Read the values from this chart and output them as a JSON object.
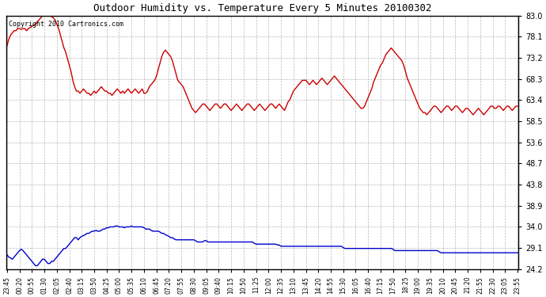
{
  "title": "Outdoor Humidity vs. Temperature Every 5 Minutes 20100302",
  "copyright": "Copyright 2010 Cartronics.com",
  "background_color": "#ffffff",
  "plot_bg_color": "#ffffff",
  "grid_color": "#b0b0b0",
  "y_ticks": [
    24.2,
    29.1,
    34.0,
    38.9,
    43.8,
    48.7,
    53.6,
    58.5,
    63.4,
    68.3,
    73.2,
    78.1,
    83.0
  ],
  "y_min": 24.2,
  "y_max": 83.0,
  "x_labels": [
    "23:45",
    "00:20",
    "00:55",
    "01:30",
    "02:05",
    "02:40",
    "03:15",
    "03:50",
    "04:25",
    "05:00",
    "05:35",
    "06:10",
    "06:45",
    "07:20",
    "07:55",
    "08:30",
    "09:05",
    "09:40",
    "10:15",
    "10:50",
    "11:25",
    "12:00",
    "12:35",
    "13:10",
    "13:45",
    "14:20",
    "14:55",
    "15:30",
    "16:05",
    "16:40",
    "17:15",
    "17:50",
    "18:25",
    "19:00",
    "19:35",
    "20:10",
    "20:45",
    "21:20",
    "21:55",
    "22:30",
    "23:05",
    "23:55"
  ],
  "humidity_color": "#cc0000",
  "temperature_color": "#0000cc",
  "humidity_values": [
    76.0,
    77.5,
    78.5,
    79.0,
    79.5,
    79.5,
    80.0,
    80.0,
    79.8,
    80.0,
    80.0,
    79.5,
    80.0,
    80.2,
    80.5,
    80.8,
    81.0,
    81.5,
    82.0,
    82.5,
    83.0,
    83.0,
    83.0,
    83.0,
    83.0,
    82.8,
    82.5,
    82.0,
    81.0,
    80.0,
    78.5,
    77.0,
    75.5,
    74.5,
    73.0,
    71.5,
    70.0,
    68.0,
    66.5,
    65.5,
    65.5,
    65.0,
    65.5,
    66.0,
    65.5,
    65.0,
    65.0,
    64.5,
    65.0,
    65.5,
    65.0,
    65.5,
    66.0,
    66.5,
    66.0,
    65.5,
    65.5,
    65.0,
    65.0,
    64.5,
    65.0,
    65.5,
    66.0,
    65.5,
    65.0,
    65.5,
    65.0,
    65.5,
    66.0,
    65.5,
    65.0,
    65.5,
    66.0,
    65.5,
    65.0,
    65.5,
    66.0,
    65.0,
    65.0,
    65.5,
    66.5,
    67.0,
    67.5,
    68.0,
    69.0,
    70.5,
    72.0,
    73.5,
    74.5,
    75.0,
    74.5,
    74.0,
    73.5,
    72.5,
    71.0,
    69.5,
    68.0,
    67.5,
    67.0,
    66.5,
    65.5,
    64.5,
    63.5,
    62.5,
    61.5,
    61.0,
    60.5,
    61.0,
    61.5,
    62.0,
    62.5,
    62.5,
    62.0,
    61.5,
    61.0,
    61.5,
    62.0,
    62.5,
    62.5,
    62.0,
    61.5,
    62.0,
    62.5,
    62.5,
    62.0,
    61.5,
    61.0,
    61.5,
    62.0,
    62.5,
    62.0,
    61.5,
    61.0,
    61.5,
    62.0,
    62.5,
    62.5,
    62.0,
    61.5,
    61.0,
    61.5,
    62.0,
    62.5,
    62.0,
    61.5,
    61.0,
    61.5,
    62.0,
    62.5,
    62.5,
    62.0,
    61.5,
    62.0,
    62.5,
    62.0,
    61.5,
    61.0,
    62.0,
    63.0,
    63.5,
    64.5,
    65.5,
    66.0,
    66.5,
    67.0,
    67.5,
    68.0,
    68.0,
    68.0,
    67.5,
    67.0,
    67.5,
    68.0,
    67.5,
    67.0,
    67.5,
    68.0,
    68.5,
    68.0,
    67.5,
    67.0,
    67.5,
    68.0,
    68.5,
    69.0,
    68.5,
    68.0,
    67.5,
    67.0,
    66.5,
    66.0,
    65.5,
    65.0,
    64.5,
    64.0,
    63.5,
    63.0,
    62.5,
    62.0,
    61.5,
    61.5,
    62.0,
    63.0,
    64.0,
    65.0,
    66.0,
    67.5,
    68.5,
    69.5,
    70.5,
    71.5,
    72.0,
    73.0,
    74.0,
    74.5,
    75.0,
    75.5,
    75.0,
    74.5,
    74.0,
    73.5,
    73.0,
    72.5,
    71.5,
    70.0,
    68.5,
    67.5,
    66.5,
    65.5,
    64.5,
    63.5,
    62.5,
    61.5,
    61.0,
    60.5,
    60.5,
    60.0,
    60.5,
    61.0,
    61.5,
    62.0,
    62.0,
    61.5,
    61.0,
    60.5,
    61.0,
    61.5,
    62.0,
    62.0,
    61.5,
    61.0,
    61.5,
    62.0,
    62.0,
    61.5,
    61.0,
    60.5,
    61.0,
    61.5,
    61.5,
    61.0,
    60.5,
    60.0,
    60.5,
    61.0,
    61.5,
    61.0,
    60.5,
    60.0,
    60.5,
    61.0,
    61.5,
    62.0,
    62.0,
    61.5,
    61.5,
    62.0,
    62.0,
    61.5,
    61.0,
    61.5,
    62.0,
    62.0,
    61.5,
    61.0,
    61.5,
    62.0,
    62.0
  ],
  "temperature_values": [
    27.5,
    27.0,
    26.8,
    26.5,
    27.0,
    27.5,
    28.0,
    28.5,
    28.8,
    28.5,
    28.0,
    27.5,
    27.0,
    26.5,
    26.0,
    25.5,
    25.0,
    25.0,
    25.5,
    26.0,
    26.5,
    26.5,
    26.0,
    25.5,
    25.5,
    26.0,
    26.0,
    26.5,
    27.0,
    27.5,
    28.0,
    28.5,
    29.0,
    29.0,
    29.5,
    30.0,
    30.5,
    31.0,
    31.5,
    31.5,
    31.0,
    31.5,
    31.8,
    32.0,
    32.2,
    32.5,
    32.5,
    32.8,
    33.0,
    33.0,
    33.2,
    33.0,
    33.0,
    33.2,
    33.5,
    33.5,
    33.8,
    33.8,
    34.0,
    34.0,
    34.0,
    34.2,
    34.2,
    34.0,
    34.0,
    34.0,
    33.8,
    34.0,
    34.0,
    34.0,
    34.2,
    34.0,
    34.0,
    34.0,
    34.0,
    34.0,
    34.0,
    33.8,
    33.5,
    33.5,
    33.5,
    33.2,
    33.0,
    33.0,
    33.0,
    33.0,
    32.8,
    32.5,
    32.5,
    32.2,
    32.0,
    31.8,
    31.5,
    31.5,
    31.2,
    31.0,
    31.0,
    31.0,
    31.0,
    31.0,
    31.0,
    31.0,
    31.0,
    31.0,
    31.0,
    31.0,
    30.8,
    30.5,
    30.5,
    30.5,
    30.5,
    30.8,
    30.8,
    30.5,
    30.5,
    30.5,
    30.5,
    30.5,
    30.5,
    30.5,
    30.5,
    30.5,
    30.5,
    30.5,
    30.5,
    30.5,
    30.5,
    30.5,
    30.5,
    30.5,
    30.5,
    30.5,
    30.5,
    30.5,
    30.5,
    30.5,
    30.5,
    30.5,
    30.5,
    30.2,
    30.0,
    30.0,
    30.0,
    30.0,
    30.0,
    30.0,
    30.0,
    30.0,
    30.0,
    30.0,
    30.0,
    30.0,
    29.8,
    29.8,
    29.5,
    29.5,
    29.5,
    29.5,
    29.5,
    29.5,
    29.5,
    29.5,
    29.5,
    29.5,
    29.5,
    29.5,
    29.5,
    29.5,
    29.5,
    29.5,
    29.5,
    29.5,
    29.5,
    29.5,
    29.5,
    29.5,
    29.5,
    29.5,
    29.5,
    29.5,
    29.5,
    29.5,
    29.5,
    29.5,
    29.5,
    29.5,
    29.5,
    29.5,
    29.5,
    29.2,
    29.0,
    29.0,
    29.0,
    29.0,
    29.0,
    29.0,
    29.0,
    29.0,
    29.0,
    29.0,
    29.0,
    29.0,
    29.0,
    29.0,
    29.0,
    29.0,
    29.0,
    29.0,
    29.0,
    29.0,
    29.0,
    29.0,
    29.0,
    29.0,
    29.0,
    29.0,
    29.0,
    28.8,
    28.5,
    28.5,
    28.5,
    28.5,
    28.5,
    28.5,
    28.5,
    28.5,
    28.5,
    28.5,
    28.5,
    28.5,
    28.5,
    28.5,
    28.5,
    28.5,
    28.5,
    28.5,
    28.5,
    28.5,
    28.5,
    28.5,
    28.5,
    28.5,
    28.5,
    28.2,
    28.0,
    28.0,
    28.0,
    28.0,
    28.0,
    28.0,
    28.0,
    28.0,
    28.0,
    28.0,
    28.0,
    28.0,
    28.0,
    28.0,
    28.0,
    28.0,
    28.0,
    28.0,
    28.0,
    28.0,
    28.0,
    28.0,
    28.0,
    28.0,
    28.0,
    28.0,
    28.0,
    28.0,
    28.0,
    28.0,
    28.0,
    28.0,
    28.0,
    28.0,
    28.0,
    28.0,
    28.0,
    28.0,
    28.0,
    28.0,
    28.0,
    28.0,
    28.0,
    28.0
  ],
  "n_points": 288,
  "x_tick_positions": [
    0,
    7,
    14,
    21,
    28,
    35,
    42,
    49,
    56,
    63,
    70,
    77,
    84,
    91,
    98,
    105,
    112,
    119,
    126,
    133,
    140,
    147,
    154,
    161,
    168,
    175,
    182,
    189,
    196,
    203,
    210,
    217,
    224,
    231,
    238,
    245,
    252,
    259,
    266,
    273,
    280,
    287
  ]
}
